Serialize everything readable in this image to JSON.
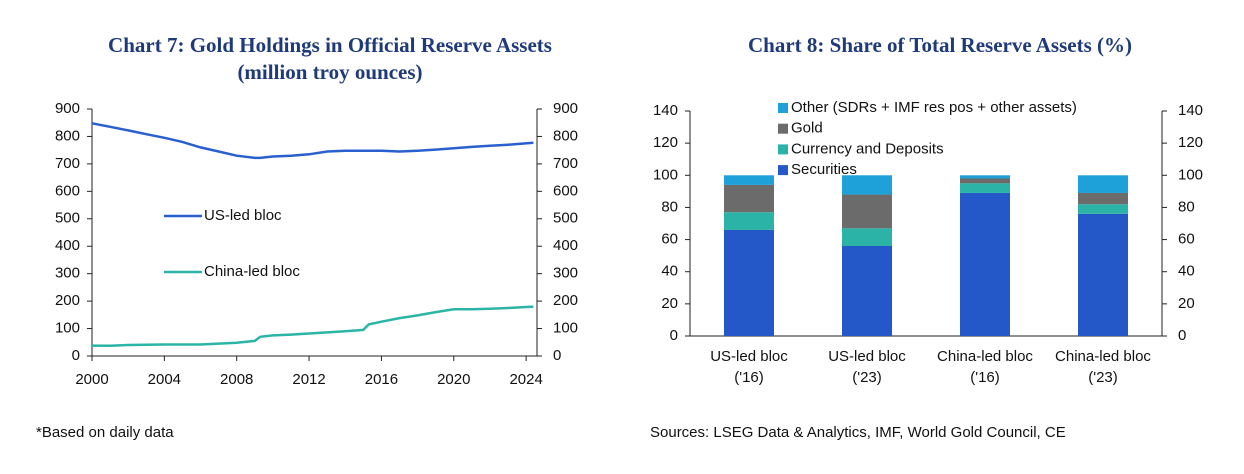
{
  "chart_data": [
    {
      "type": "line",
      "title": "Chart 7: Gold Holdings in Official Reserve Assets",
      "subtitle": "(million troy ounces)",
      "x": [
        2000,
        2001,
        2002,
        2003,
        2004,
        2005,
        2006,
        2007,
        2008,
        2009,
        2009.3,
        2010,
        2011,
        2012,
        2013,
        2014,
        2015,
        2015.3,
        2016,
        2017,
        2018,
        2019,
        2020,
        2021,
        2022,
        2023,
        2024.4
      ],
      "series": [
        {
          "name": "US-led bloc",
          "color": "#2a5fd0",
          "values": [
            848,
            835,
            822,
            808,
            795,
            780,
            760,
            745,
            730,
            722,
            722,
            727,
            730,
            735,
            745,
            748,
            748,
            748,
            748,
            745,
            748,
            752,
            757,
            762,
            766,
            770,
            777
          ]
        },
        {
          "name": "China-led bloc",
          "color": "#2bb5a6",
          "values": [
            38,
            37,
            40,
            41,
            42,
            42,
            42,
            45,
            48,
            55,
            70,
            75,
            78,
            82,
            86,
            90,
            95,
            115,
            125,
            138,
            148,
            160,
            170,
            170,
            172,
            175,
            180
          ]
        }
      ],
      "xlim": [
        2000,
        2024.6
      ],
      "xticks": [
        2000,
        2004,
        2008,
        2012,
        2016,
        2020,
        2024
      ],
      "ylim": [
        0,
        900
      ],
      "yticks": [
        0,
        100,
        200,
        300,
        400,
        500,
        600,
        700,
        800,
        900
      ],
      "y2lim": [
        0,
        900
      ],
      "y2ticks": [
        0,
        100,
        200,
        300,
        400,
        500,
        600,
        700,
        800,
        900
      ],
      "legend": "left",
      "note": "*Based on daily data"
    },
    {
      "type": "bar",
      "stacked": true,
      "title": "Chart 8: Share of Total Reserve Assets (%)",
      "categories": [
        [
          "US-led bloc",
          "('16)"
        ],
        [
          "US-led bloc",
          "('23)"
        ],
        [
          "China-led bloc",
          "('16)"
        ],
        [
          "China-led bloc",
          "('23)"
        ]
      ],
      "series": [
        {
          "name": "Securities",
          "color": "#2457c8",
          "values": [
            66,
            56,
            89,
            76
          ]
        },
        {
          "name": "Currency and Deposits",
          "color": "#2bb3a8",
          "values": [
            11,
            11,
            6,
            6
          ]
        },
        {
          "name": "Gold",
          "color": "#6b6b6b",
          "values": [
            17,
            21,
            3,
            7
          ]
        },
        {
          "name": "Other (SDRs + IMF res pos + other assets)",
          "color": "#1ea0d8",
          "values": [
            6,
            12,
            2,
            11
          ]
        }
      ],
      "ylim": [
        0,
        140
      ],
      "yticks": [
        0,
        20,
        40,
        60,
        80,
        100,
        120,
        140
      ],
      "y2lim": [
        0,
        140
      ],
      "y2ticks": [
        0,
        20,
        40,
        60,
        80,
        100,
        120,
        140
      ],
      "legend": "top-left",
      "note": "Sources: LSEG Data & Analytics, IMF, World Gold Council, CE"
    }
  ]
}
